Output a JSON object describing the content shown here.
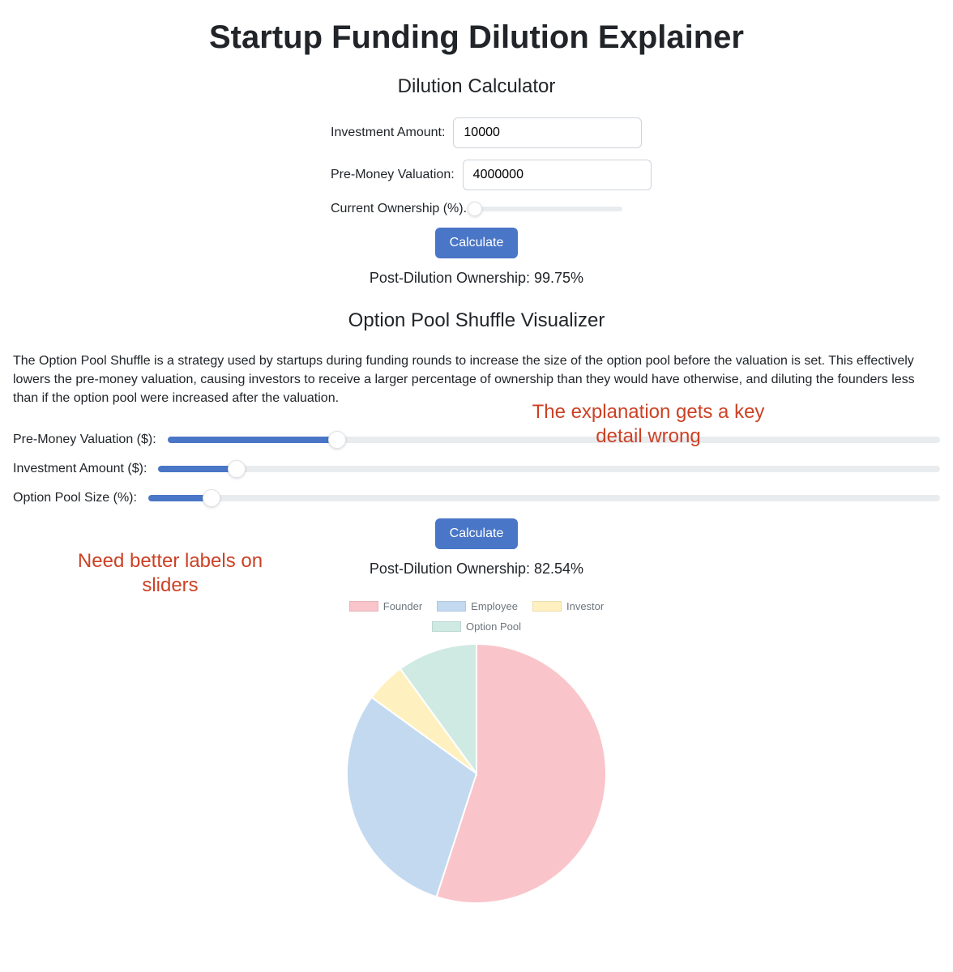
{
  "page": {
    "title": "Startup Funding Dilution Explainer"
  },
  "calculator": {
    "heading": "Dilution Calculator",
    "investment_label": "Investment Amount:",
    "investment_value": "10000",
    "premoney_label": "Pre-Money Valuation:",
    "premoney_value": "4000000",
    "ownership_label": "Current Ownership (%).",
    "ownership_slider": {
      "pct": 0
    },
    "calculate_label": "Calculate",
    "result_prefix": "Post-Dilution Ownership: ",
    "result_value": "99.75%"
  },
  "visualizer": {
    "heading": "Option Pool Shuffle Visualizer",
    "description": "The Option Pool Shuffle is a strategy used by startups during funding rounds to increase the size of the option pool before the valuation is set. This effectively lowers the pre-money valuation, causing investors to receive a larger percentage of ownership than they would have otherwise, and diluting the founders less than if the option pool were increased after the valuation.",
    "sliders": {
      "premoney": {
        "label": "Pre-Money Valuation ($):",
        "pct": 22
      },
      "investment": {
        "label": "Investment Amount ($):",
        "pct": 10
      },
      "option_pool": {
        "label": "Option Pool Size (%):",
        "pct": 8
      }
    },
    "calculate_label": "Calculate",
    "result_prefix": "Post-Dilution Ownership: ",
    "result_value": "82.54%"
  },
  "pie": {
    "type": "pie",
    "radius": 160,
    "border_color": "#ffffff",
    "border_width": 2,
    "legend": [
      {
        "label": "Founder",
        "color": "#f9c5ca"
      },
      {
        "label": "Employee",
        "color": "#c2d9f0"
      },
      {
        "label": "Investor",
        "color": "#fff1bf"
      },
      {
        "label": "Option Pool",
        "color": "#cfe9e3"
      }
    ],
    "slices": [
      {
        "label": "Founder",
        "value": 55,
        "color": "#f9c5ca"
      },
      {
        "label": "Employee",
        "value": 30,
        "color": "#c2d9f0"
      },
      {
        "label": "Investor",
        "value": 5,
        "color": "#fff1bf"
      },
      {
        "label": "Option Pool",
        "value": 10,
        "color": "#cfe9e3"
      }
    ]
  },
  "annotations": {
    "top_right": "The explanation gets a key detail wrong",
    "left": "Need better labels on sliders",
    "color": "#cc4125",
    "fontsize": 24
  },
  "colors": {
    "accent": "#4a76c7",
    "track": "#e9ecef",
    "text": "#212529",
    "muted": "#6c757d"
  }
}
